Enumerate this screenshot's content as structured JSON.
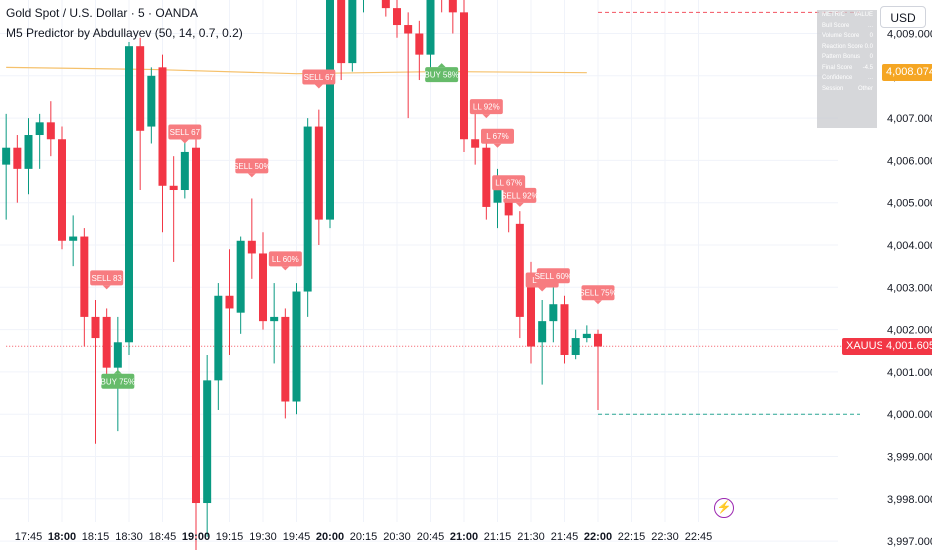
{
  "legend": {
    "title": "Gold Spot / U.S. Dollar · 5 · OANDA",
    "indicator": "M5 Predictor by Abdullayev (50, 14, 0.7, 0.2)"
  },
  "toolbar": {
    "currency": "USD"
  },
  "info_table": {
    "header": [
      "METRIC",
      "VALUE"
    ],
    "rows": [
      [
        "Bull Score",
        "..."
      ],
      [
        "Volume Score",
        "0"
      ],
      [
        "Reaction Score",
        "0.0"
      ],
      [
        "Pattern Bonus",
        "0"
      ],
      [
        "Final Score",
        "-4.5"
      ],
      [
        "Confidence",
        "..."
      ],
      [
        "Session",
        "Other"
      ]
    ]
  },
  "price_tags": {
    "ma": {
      "label": "4,008.074",
      "value": 4008.074,
      "color": "#f5a623"
    },
    "last": {
      "symbol": "XAUUSD",
      "label": "4,001.605",
      "value": 4001.605,
      "color": "#f23645"
    }
  },
  "colors": {
    "bull": "#089981",
    "bear": "#f23645",
    "ma": "#f5c16c",
    "sell_label": "#f77c80",
    "buy_label": "#66bb6a",
    "grid": "#f0f3fa"
  },
  "chart_data": {
    "type": "candlestick",
    "title": "Gold Spot / U.S. Dollar · 5 · OANDA",
    "interval_minutes": 5,
    "y_ticks": [
      3997,
      3998,
      3999,
      4000,
      4001,
      4002,
      4003,
      4004,
      4005,
      4006,
      4007,
      4008,
      4009
    ],
    "y_tick_labels": [
      "3,997.000",
      "3,998.000",
      "3,999.000",
      "4,000.000",
      "4,001.000",
      "4,002.000",
      "4,003.000",
      "4,004.000",
      "4,005.000",
      "4,006.000",
      "4,007.000",
      "4,008.000",
      "4,009.000"
    ],
    "ylim": [
      3996.6,
      4010.6
    ],
    "x_ticks": [
      {
        "t": "17:45",
        "bold": false
      },
      {
        "t": "18:00",
        "bold": true
      },
      {
        "t": "18:15",
        "bold": false
      },
      {
        "t": "18:30",
        "bold": false
      },
      {
        "t": "18:45",
        "bold": false
      },
      {
        "t": "19:00",
        "bold": true
      },
      {
        "t": "19:15",
        "bold": false
      },
      {
        "t": "19:30",
        "bold": false
      },
      {
        "t": "19:45",
        "bold": false
      },
      {
        "t": "20:00",
        "bold": true
      },
      {
        "t": "20:15",
        "bold": false
      },
      {
        "t": "20:30",
        "bold": false
      },
      {
        "t": "20:45",
        "bold": false
      },
      {
        "t": "21:00",
        "bold": true
      },
      {
        "t": "21:15",
        "bold": false
      },
      {
        "t": "21:30",
        "bold": false
      },
      {
        "t": "21:45",
        "bold": false
      },
      {
        "t": "22:00",
        "bold": true
      },
      {
        "t": "22:15",
        "bold": false
      },
      {
        "t": "22:30",
        "bold": false
      },
      {
        "t": "22:45",
        "bold": false
      }
    ],
    "candles": [
      {
        "t": "17:35",
        "o": 4005.9,
        "h": 4007.1,
        "l": 4004.6,
        "c": 4006.3
      },
      {
        "t": "17:40",
        "o": 4006.3,
        "h": 4006.6,
        "l": 4005.0,
        "c": 4005.8
      },
      {
        "t": "17:45",
        "o": 4005.8,
        "h": 4007.0,
        "l": 4005.2,
        "c": 4006.6
      },
      {
        "t": "17:50",
        "o": 4006.6,
        "h": 4007.1,
        "l": 4005.8,
        "c": 4006.9
      },
      {
        "t": "17:55",
        "o": 4006.9,
        "h": 4007.4,
        "l": 4006.1,
        "c": 4006.5
      },
      {
        "t": "18:00",
        "o": 4006.5,
        "h": 4006.8,
        "l": 4003.9,
        "c": 4004.1
      },
      {
        "t": "18:05",
        "o": 4004.1,
        "h": 4004.7,
        "l": 4003.5,
        "c": 4004.2
      },
      {
        "t": "18:10",
        "o": 4004.2,
        "h": 4004.4,
        "l": 4001.6,
        "c": 4002.3
      },
      {
        "t": "18:15",
        "o": 4002.3,
        "h": 4002.7,
        "l": 3999.3,
        "c": 4001.8
      },
      {
        "t": "18:20",
        "o": 4002.3,
        "h": 4002.5,
        "l": 4000.8,
        "c": 4001.1
      },
      {
        "t": "18:25",
        "o": 4001.1,
        "h": 4002.3,
        "l": 3999.6,
        "c": 4001.7
      },
      {
        "t": "18:30",
        "o": 4001.7,
        "h": 4008.8,
        "l": 4001.4,
        "c": 4008.7
      },
      {
        "t": "18:35",
        "o": 4008.7,
        "h": 4008.9,
        "l": 4005.3,
        "c": 4006.7
      },
      {
        "t": "18:40",
        "o": 4006.8,
        "h": 4008.2,
        "l": 4006.4,
        "c": 4008.0
      },
      {
        "t": "18:45",
        "o": 4008.2,
        "h": 4008.5,
        "l": 4004.3,
        "c": 4005.4
      },
      {
        "t": "18:50",
        "o": 4005.4,
        "h": 4006.1,
        "l": 4003.6,
        "c": 4005.3
      },
      {
        "t": "18:55",
        "o": 4005.3,
        "h": 4006.7,
        "l": 4005.1,
        "c": 4006.2
      },
      {
        "t": "19:00",
        "o": 4006.3,
        "h": 4006.5,
        "l": 3996.7,
        "c": 3997.9
      },
      {
        "t": "19:05",
        "o": 3997.9,
        "h": 4001.4,
        "l": 3997.1,
        "c": 4000.8
      },
      {
        "t": "19:10",
        "o": 4000.8,
        "h": 4003.1,
        "l": 4000.1,
        "c": 4002.8
      },
      {
        "t": "19:15",
        "o": 4002.8,
        "h": 4003.9,
        "l": 4001.4,
        "c": 4002.5
      },
      {
        "t": "19:20",
        "o": 4002.4,
        "h": 4004.2,
        "l": 4001.9,
        "c": 4004.1
      },
      {
        "t": "19:25",
        "o": 4004.1,
        "h": 4005.1,
        "l": 4003.2,
        "c": 4003.8
      },
      {
        "t": "19:30",
        "o": 4003.8,
        "h": 4004.3,
        "l": 4002.0,
        "c": 4002.2
      },
      {
        "t": "19:35",
        "o": 4002.2,
        "h": 4003.1,
        "l": 4001.2,
        "c": 4002.3
      },
      {
        "t": "19:40",
        "o": 4002.3,
        "h": 4002.5,
        "l": 3999.9,
        "c": 4000.3
      },
      {
        "t": "19:45",
        "o": 4000.3,
        "h": 4003.1,
        "l": 4000.0,
        "c": 4002.9
      },
      {
        "t": "19:50",
        "o": 4002.9,
        "h": 4007.0,
        "l": 4002.3,
        "c": 4006.8
      },
      {
        "t": "19:55",
        "o": 4006.8,
        "h": 4007.2,
        "l": 4004.0,
        "c": 4004.6
      },
      {
        "t": "20:00",
        "o": 4004.6,
        "h": 4010.3,
        "l": 4004.4,
        "c": 4010.0
      },
      {
        "t": "20:05",
        "o": 4010.0,
        "h": 4010.5,
        "l": 4007.9,
        "c": 4008.3
      },
      {
        "t": "20:10",
        "o": 4008.3,
        "h": 4010.3,
        "l": 4008.1,
        "c": 4009.8
      },
      {
        "t": "20:15",
        "o": 4009.8,
        "h": 4010.5,
        "l": 4009.5,
        "c": 4010.3
      },
      {
        "t": "20:25",
        "o": 4010.5,
        "h": 4010.8,
        "l": 4009.4,
        "c": 4009.6
      },
      {
        "t": "20:30",
        "o": 4009.6,
        "h": 4010.1,
        "l": 4008.9,
        "c": 4009.2
      },
      {
        "t": "20:35",
        "o": 4009.2,
        "h": 4009.5,
        "l": 4007.0,
        "c": 4009.0
      },
      {
        "t": "20:40",
        "o": 4009.0,
        "h": 4009.3,
        "l": 4007.9,
        "c": 4008.5
      },
      {
        "t": "20:45",
        "o": 4008.5,
        "h": 4010.6,
        "l": 4008.2,
        "c": 4010.4
      },
      {
        "t": "20:50",
        "o": 4010.4,
        "h": 4010.6,
        "l": 4009.5,
        "c": 4010.0
      },
      {
        "t": "20:55",
        "o": 4010.3,
        "h": 4010.6,
        "l": 4009.0,
        "c": 4009.5
      },
      {
        "t": "21:00",
        "o": 4009.5,
        "h": 4010.1,
        "l": 4006.2,
        "c": 4006.5
      },
      {
        "t": "21:05",
        "o": 4006.5,
        "h": 4007.1,
        "l": 4005.9,
        "c": 4006.3
      },
      {
        "t": "21:10",
        "o": 4006.3,
        "h": 4006.5,
        "l": 4004.6,
        "c": 4004.9
      },
      {
        "t": "21:15",
        "o": 4005.0,
        "h": 4005.8,
        "l": 4004.4,
        "c": 4005.4
      },
      {
        "t": "21:20",
        "o": 4005.3,
        "h": 4005.6,
        "l": 4004.3,
        "c": 4004.7
      },
      {
        "t": "21:25",
        "o": 4004.5,
        "h": 4004.8,
        "l": 4001.8,
        "c": 4002.3
      },
      {
        "t": "21:30",
        "o": 4003.2,
        "h": 4003.6,
        "l": 4001.2,
        "c": 4001.6
      },
      {
        "t": "21:35",
        "o": 4001.7,
        "h": 4002.7,
        "l": 4000.7,
        "c": 4002.2
      },
      {
        "t": "21:40",
        "o": 4002.2,
        "h": 4003.1,
        "l": 4001.7,
        "c": 4002.6
      },
      {
        "t": "21:45",
        "o": 4002.6,
        "h": 4002.8,
        "l": 4001.2,
        "c": 4001.4
      },
      {
        "t": "21:50",
        "o": 4001.4,
        "h": 4002.0,
        "l": 4001.3,
        "c": 4001.8
      },
      {
        "t": "21:55",
        "o": 4001.8,
        "h": 4002.1,
        "l": 4001.7,
        "c": 4001.9
      },
      {
        "t": "22:00",
        "o": 4001.9,
        "h": 4002.0,
        "l": 4000.1,
        "c": 4001.6
      }
    ],
    "moving_average": [
      {
        "t": "17:35",
        "v": 4008.2
      },
      {
        "t": "18:40",
        "v": 4008.15
      },
      {
        "t": "19:45",
        "v": 4008.05
      },
      {
        "t": "20:50",
        "v": 4008.1
      },
      {
        "t": "21:55",
        "v": 4008.074
      }
    ],
    "signals": [
      {
        "t": "18:20",
        "type": "sell",
        "text": "SELL 83",
        "price": 4002.95
      },
      {
        "t": "18:25",
        "type": "buy",
        "text": "BUY 75%",
        "price": 4001.05
      },
      {
        "t": "18:55",
        "type": "sell",
        "text": "SELL 67",
        "price": 4006.4
      },
      {
        "t": "19:25",
        "type": "sell",
        "text": "SELL 50%",
        "price": 4005.6
      },
      {
        "t": "19:40",
        "type": "sell",
        "text": "LL 60%",
        "price": 4003.4
      },
      {
        "t": "19:55",
        "type": "sell",
        "text": "SELL 67",
        "price": 4007.7
      },
      {
        "t": "20:50",
        "type": "buy",
        "text": "BUY 58%",
        "price": 4008.3
      },
      {
        "t": "21:00",
        "type": "sell",
        "text": "SELL 92%",
        "price": 4010.6
      },
      {
        "t": "21:10",
        "type": "sell",
        "text": "LL 92%",
        "price": 4007.0
      },
      {
        "t": "21:15",
        "type": "sell",
        "text": "L 67%",
        "price": 4006.3
      },
      {
        "t": "21:20",
        "type": "sell",
        "text": "LL 67%",
        "price": 4005.2
      },
      {
        "t": "21:25",
        "type": "sell",
        "text": "SELL 92%",
        "price": 4004.9
      },
      {
        "t": "21:35",
        "type": "sell",
        "text": "LL 60",
        "price": 4002.9
      },
      {
        "t": "21:40",
        "type": "sell",
        "text": "SELL 60%",
        "price": 4003.0
      },
      {
        "t": "22:00",
        "type": "sell",
        "text": "SELL 75%",
        "price": 4002.6
      }
    ],
    "hlines": [
      {
        "price": 4009.5,
        "color": "#f23645",
        "style": "dashed",
        "from": "22:00"
      },
      {
        "price": 4001.605,
        "color": "#f23645",
        "style": "dotted",
        "from": "17:35"
      },
      {
        "price": 4000.0,
        "color": "#089981",
        "style": "dashed",
        "from": "22:00"
      }
    ],
    "grid": true
  }
}
